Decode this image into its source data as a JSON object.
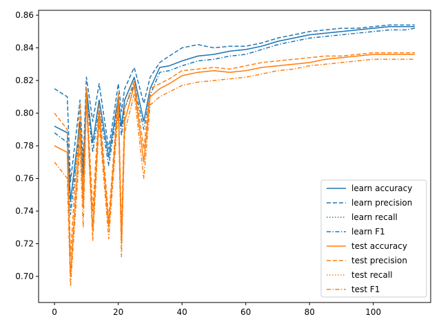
{
  "chart_data": {
    "type": "line",
    "title": "",
    "xlabel": "",
    "ylabel": "",
    "xlim": [
      -5,
      118
    ],
    "ylim": [
      0.684,
      0.863
    ],
    "x_ticks": [
      0,
      20,
      40,
      60,
      80,
      100
    ],
    "y_ticks": [
      0.7,
      0.72,
      0.74,
      0.76,
      0.78,
      0.8,
      0.82,
      0.84,
      0.86
    ],
    "x_tick_labels": [
      "0",
      "20",
      "40",
      "60",
      "80",
      "100"
    ],
    "y_tick_labels": [
      "0.70",
      "0.72",
      "0.74",
      "0.76",
      "0.78",
      "0.80",
      "0.82",
      "0.84",
      "0.86"
    ],
    "grid": false,
    "legend_position": "lower-right",
    "x": [
      0,
      4,
      5,
      8,
      9,
      10,
      12,
      14,
      17,
      20,
      21,
      22,
      25,
      28,
      30,
      33,
      36,
      40,
      45,
      50,
      55,
      60,
      65,
      70,
      75,
      80,
      85,
      90,
      95,
      100,
      105,
      110,
      113
    ],
    "series": [
      {
        "name": "learn accuracy",
        "color": "#1f77b4",
        "line_style": "solid",
        "values": [
          0.792,
          0.788,
          0.746,
          0.795,
          0.762,
          0.815,
          0.782,
          0.808,
          0.773,
          0.81,
          0.792,
          0.808,
          0.822,
          0.795,
          0.815,
          0.828,
          0.829,
          0.832,
          0.835,
          0.836,
          0.838,
          0.839,
          0.841,
          0.844,
          0.846,
          0.848,
          0.849,
          0.85,
          0.851,
          0.852,
          0.853,
          0.853,
          0.853
        ]
      },
      {
        "name": "learn precision",
        "color": "#1f77b4",
        "line_style": "dashed",
        "values": [
          0.815,
          0.81,
          0.758,
          0.808,
          0.77,
          0.822,
          0.795,
          0.818,
          0.778,
          0.818,
          0.801,
          0.815,
          0.828,
          0.806,
          0.822,
          0.831,
          0.835,
          0.84,
          0.842,
          0.84,
          0.841,
          0.841,
          0.843,
          0.846,
          0.848,
          0.85,
          0.851,
          0.852,
          0.852,
          0.853,
          0.854,
          0.854,
          0.854
        ]
      },
      {
        "name": "learn recall",
        "color": "#1f77b4",
        "line_style": "dotted",
        "values": [
          0.792,
          0.788,
          0.746,
          0.795,
          0.762,
          0.815,
          0.782,
          0.808,
          0.773,
          0.81,
          0.792,
          0.808,
          0.822,
          0.795,
          0.815,
          0.828,
          0.829,
          0.832,
          0.835,
          0.836,
          0.838,
          0.839,
          0.841,
          0.844,
          0.846,
          0.848,
          0.849,
          0.85,
          0.851,
          0.852,
          0.853,
          0.853,
          0.853
        ]
      },
      {
        "name": "learn F1",
        "color": "#1f77b4",
        "line_style": "dashdot",
        "values": [
          0.788,
          0.782,
          0.738,
          0.79,
          0.755,
          0.812,
          0.776,
          0.803,
          0.768,
          0.806,
          0.786,
          0.803,
          0.818,
          0.79,
          0.811,
          0.825,
          0.826,
          0.829,
          0.832,
          0.833,
          0.835,
          0.836,
          0.839,
          0.842,
          0.844,
          0.846,
          0.847,
          0.848,
          0.849,
          0.85,
          0.851,
          0.851,
          0.852
        ]
      },
      {
        "name": "test accuracy",
        "color": "#ff7f0e",
        "line_style": "solid",
        "values": [
          0.78,
          0.776,
          0.7,
          0.79,
          0.742,
          0.812,
          0.728,
          0.8,
          0.73,
          0.808,
          0.72,
          0.795,
          0.817,
          0.77,
          0.81,
          0.815,
          0.818,
          0.823,
          0.825,
          0.826,
          0.825,
          0.826,
          0.828,
          0.829,
          0.83,
          0.831,
          0.833,
          0.834,
          0.835,
          0.836,
          0.836,
          0.836,
          0.836
        ]
      },
      {
        "name": "test precision",
        "color": "#ff7f0e",
        "line_style": "dashed",
        "values": [
          0.8,
          0.79,
          0.712,
          0.806,
          0.752,
          0.815,
          0.74,
          0.806,
          0.735,
          0.812,
          0.728,
          0.803,
          0.82,
          0.778,
          0.815,
          0.818,
          0.821,
          0.826,
          0.827,
          0.828,
          0.827,
          0.829,
          0.831,
          0.832,
          0.833,
          0.834,
          0.835,
          0.835,
          0.836,
          0.837,
          0.837,
          0.837,
          0.837
        ]
      },
      {
        "name": "test recall",
        "color": "#ff7f0e",
        "line_style": "dotted",
        "values": [
          0.78,
          0.776,
          0.7,
          0.79,
          0.742,
          0.812,
          0.728,
          0.8,
          0.73,
          0.808,
          0.72,
          0.795,
          0.817,
          0.77,
          0.81,
          0.815,
          0.818,
          0.823,
          0.825,
          0.826,
          0.825,
          0.826,
          0.828,
          0.829,
          0.83,
          0.831,
          0.833,
          0.834,
          0.835,
          0.836,
          0.836,
          0.836,
          0.836
        ]
      },
      {
        "name": "test F1",
        "color": "#ff7f0e",
        "line_style": "dashdot",
        "values": [
          0.77,
          0.76,
          0.694,
          0.78,
          0.73,
          0.808,
          0.722,
          0.794,
          0.723,
          0.802,
          0.712,
          0.788,
          0.812,
          0.76,
          0.805,
          0.81,
          0.813,
          0.817,
          0.819,
          0.82,
          0.821,
          0.822,
          0.824,
          0.826,
          0.827,
          0.829,
          0.83,
          0.831,
          0.832,
          0.833,
          0.833,
          0.833,
          0.833
        ]
      }
    ]
  }
}
